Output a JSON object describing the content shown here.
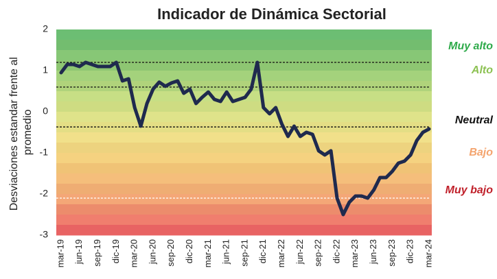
{
  "chart_data": {
    "type": "line",
    "title": "Indicador de Dinámica Sectorial",
    "y_label": [
      "Desviaciones estandar frente al",
      "promedio"
    ],
    "categories": [
      "mar-19",
      null,
      null,
      "jun-19",
      null,
      null,
      "sep-19",
      null,
      null,
      "dic-19",
      null,
      null,
      "mar-20",
      null,
      null,
      "jun-20",
      null,
      null,
      "sep-20",
      null,
      null,
      "dic-20",
      null,
      null,
      "mar-21",
      null,
      null,
      "jun-21",
      null,
      null,
      "sep-21",
      null,
      null,
      "dic-21",
      null,
      null,
      "mar-22",
      null,
      null,
      "jun-22",
      null,
      null,
      "sep-22",
      null,
      null,
      "dic-22",
      null,
      null,
      "mar-23",
      null,
      null,
      "jun-23",
      null,
      null,
      "sep-23",
      null,
      null,
      "dic-23",
      null,
      null,
      "mar-24"
    ],
    "values": [
      0.95,
      1.15,
      1.15,
      1.1,
      1.2,
      1.15,
      1.1,
      1.1,
      1.1,
      1.2,
      0.75,
      0.8,
      0.1,
      -0.35,
      0.2,
      0.55,
      0.72,
      0.62,
      0.7,
      0.75,
      0.45,
      0.55,
      0.2,
      0.35,
      0.48,
      0.3,
      0.25,
      0.48,
      0.25,
      0.3,
      0.35,
      0.55,
      1.2,
      0.1,
      -0.05,
      0.1,
      -0.3,
      -0.6,
      -0.35,
      -0.6,
      -0.5,
      -0.55,
      -0.95,
      -1.05,
      -0.95,
      -2.1,
      -2.5,
      -2.2,
      -2.05,
      -2.05,
      -2.1,
      -1.9,
      -1.6,
      -1.6,
      -1.45,
      -1.25,
      -1.2,
      -1.05,
      -0.7,
      -0.5,
      -0.42
    ],
    "color": "#1f2a4e",
    "ylim": [
      -3,
      2
    ],
    "yticks": [
      2,
      1,
      0,
      -1,
      -2,
      -3
    ],
    "reference_lines": [
      1.2,
      0.6,
      -0.37,
      -2.1
    ],
    "zones": [
      {
        "label": "Muy alto",
        "color": "#2eaa4a"
      },
      {
        "label": "Alto",
        "color": "#8cc152"
      },
      {
        "label": "Neutral",
        "color": "#111111"
      },
      {
        "label": "Bajo",
        "color": "#f4a46e"
      },
      {
        "label": "Muy bajo",
        "color": "#c0202a"
      }
    ]
  }
}
